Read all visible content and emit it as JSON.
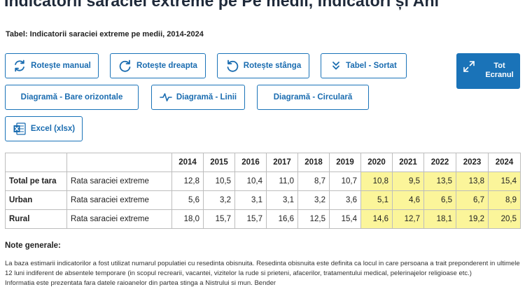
{
  "page": {
    "title": "Indicatorii saraciei extreme pe Pe medii, Indicatori și Ani",
    "subtitle": "Tabel: Indicatorii saraciei extreme pe medii, 2014-2024"
  },
  "toolbar": {
    "rotate_manual": "Rotește manual",
    "rotate_right": "Rotește dreapta",
    "rotate_left": "Rotește stânga",
    "table_sorted": "Tabel - Sortat",
    "fullscreen_line1": "Tot",
    "fullscreen_line2": "Ecranul",
    "chart_bars": "Diagramă - Bare orizontale",
    "chart_lines": "Diagramă - Linii",
    "chart_pie": "Diagramă - Circulară",
    "excel": "Excel (xlsx)"
  },
  "icons": {
    "rotate_manual": "rotate-arrows-icon",
    "rotate_right": "rotate-clockwise-icon",
    "rotate_left": "rotate-counterclockwise-icon",
    "table_sorted": "double-chevron-down-icon",
    "fullscreen": "expand-arrows-icon",
    "chart_lines": "pulse-line-icon",
    "excel": "excel-file-icon"
  },
  "colors": {
    "accent": "#1a73b8",
    "highlight": "#fbf59a"
  },
  "table": {
    "years": [
      "2014",
      "2015",
      "2016",
      "2017",
      "2018",
      "2019",
      "2020",
      "2021",
      "2022",
      "2023",
      "2024"
    ],
    "rows": [
      {
        "area": "Total pe tara",
        "indicator": "Rata saraciei extreme",
        "values": [
          "12,8",
          "10,5",
          "10,4",
          "11,0",
          "8,7",
          "10,7",
          "10,8",
          "9,5",
          "13,5",
          "13,8",
          "15,4"
        ]
      },
      {
        "area": "Urban",
        "indicator": "Rata saraciei extreme",
        "values": [
          "5,6",
          "3,2",
          "3,1",
          "3,1",
          "3,2",
          "3,6",
          "5,1",
          "4,6",
          "6,5",
          "6,7",
          "8,9"
        ]
      },
      {
        "area": "Rural",
        "indicator": "Rata saraciei extreme",
        "values": [
          "18,0",
          "15,7",
          "15,7",
          "16,6",
          "12,5",
          "15,4",
          "14,6",
          "12,7",
          "18,1",
          "19,2",
          "20,5"
        ]
      }
    ]
  },
  "notes": {
    "title": "Note generale:",
    "line1": "La baza estimarii indicatorilor a fost utilizat numarul populatiei cu resedinta obisnuita. Resedinta obisnuita este definita ca locul in care persoana a trait preponderent in ultimele 12 luni indiferent de absentele temporare (in scopul recrearii, vacantei, vizitelor la rude si prieteni, afacerilor, tratamentului medical, pelerinajelor religioase etc.)",
    "line2": "Informatia este prezentata fara datele raioanelor din partea stinga a Nistrului si mun. Bender"
  }
}
